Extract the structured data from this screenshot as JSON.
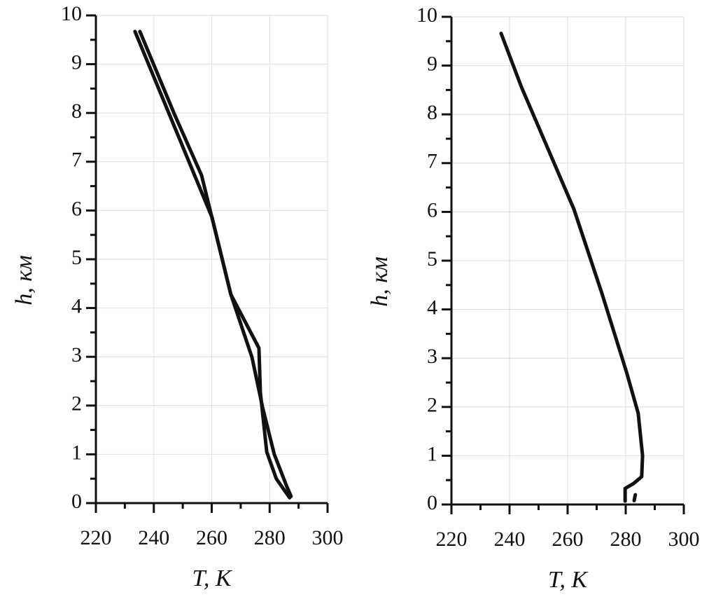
{
  "chart_data": [
    {
      "type": "line",
      "xlabel": "T, K",
      "ylabel": "h, км",
      "xlim": [
        220,
        300
      ],
      "xticks": [
        220,
        240,
        260,
        280,
        300
      ],
      "ylim": [
        0,
        10
      ],
      "yticks": [
        0,
        1,
        2,
        3,
        4,
        5,
        6,
        7,
        8,
        9,
        10
      ],
      "grid": true,
      "series": [
        {
          "color": "#111111",
          "x": [
            233.5,
            260.1,
            266.6,
            276.3,
            276.8,
            279,
            282.3,
            286.9
          ],
          "values": [
            9.67,
            5.86,
            4.28,
            3.18,
            2.27,
            1.05,
            0.5,
            0.11
          ]
        },
        {
          "color": "#111111",
          "x": [
            235.2,
            247.3,
            256.5,
            266.6,
            273.9,
            277.5,
            281.6,
            286,
            287.4
          ],
          "values": [
            9.67,
            7.95,
            6.72,
            4.28,
            2.99,
            1.98,
            1.0,
            0.33,
            0.14
          ]
        }
      ]
    },
    {
      "type": "line",
      "xlabel": "T, K",
      "ylabel": "h, км",
      "xlim": [
        220,
        300
      ],
      "xticks": [
        220,
        240,
        260,
        280,
        300
      ],
      "ylim": [
        0,
        10
      ],
      "yticks": [
        0,
        1,
        2,
        3,
        4,
        5,
        6,
        7,
        8,
        9,
        10
      ],
      "grid": true,
      "series": [
        {
          "color": "#111111",
          "x": [
            237.1,
            244.1,
            262.2,
            271.8,
            280.2,
            284.3,
            285.8,
            285.5,
            282.7,
            279.8,
            279.8
          ],
          "values": [
            9.66,
            8.56,
            6.05,
            4.33,
            2.73,
            1.87,
            1.0,
            0.57,
            0.43,
            0.33,
            0.07
          ]
        },
        {
          "color": "#111111",
          "x": [
            283.3,
            282.9
          ],
          "values": [
            0.2,
            0.08
          ]
        }
      ]
    }
  ]
}
